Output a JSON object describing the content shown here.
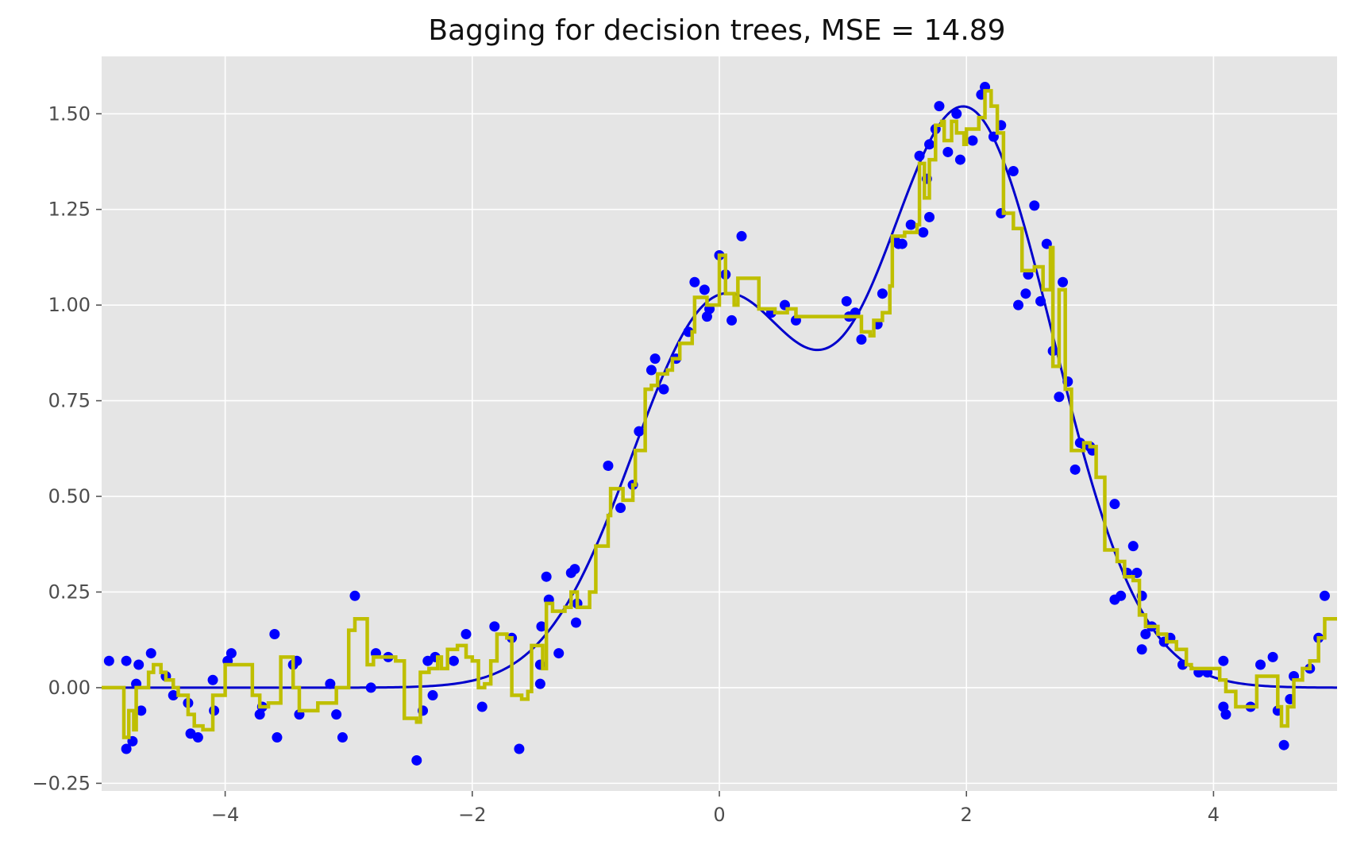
{
  "chart_data": {
    "type": "scatter",
    "title": "Bagging for decision trees, MSE = 14.89",
    "xlabel": "",
    "ylabel": "",
    "xlim": [
      -5,
      5
    ],
    "ylim": [
      -0.27,
      1.65
    ],
    "grid": true,
    "xticks": [
      -4,
      -2,
      0,
      2,
      4
    ],
    "xtick_labels": [
      "−4",
      "−2",
      "0",
      "2",
      "4"
    ],
    "yticks": [
      -0.25,
      0,
      0.25,
      0.5,
      0.75,
      1.0,
      1.25,
      1.5
    ],
    "ytick_labels": [
      "−0.25",
      "0.00",
      "0.25",
      "0.50",
      "0.75",
      "1.00",
      "1.25",
      "1.50"
    ],
    "colors": {
      "background": "#e5e5e5",
      "grid": "#ffffff",
      "points": "#0000ff",
      "true_function": "#0000cc",
      "prediction": "#bfbf00"
    },
    "true_function": {
      "note_free": true,
      "formula": "exp(-x^2) + 1.5*exp(-(x-2)^2)",
      "x_range": [
        -5,
        5
      ]
    },
    "points": [
      [
        -4.94,
        0.07
      ],
      [
        -4.8,
        0.07
      ],
      [
        -4.8,
        -0.16
      ],
      [
        -4.75,
        -0.14
      ],
      [
        -4.72,
        0.01
      ],
      [
        -4.7,
        0.06
      ],
      [
        -4.68,
        -0.06
      ],
      [
        -4.6,
        0.09
      ],
      [
        -4.48,
        0.03
      ],
      [
        -4.42,
        -0.02
      ],
      [
        -4.3,
        -0.04
      ],
      [
        -4.28,
        -0.12
      ],
      [
        -4.22,
        -0.13
      ],
      [
        -4.1,
        0.02
      ],
      [
        -4.09,
        -0.06
      ],
      [
        -3.98,
        0.07
      ],
      [
        -3.95,
        0.09
      ],
      [
        -3.72,
        -0.07
      ],
      [
        -3.7,
        -0.05
      ],
      [
        -3.6,
        0.14
      ],
      [
        -3.58,
        -0.13
      ],
      [
        -3.45,
        0.06
      ],
      [
        -3.4,
        -0.07
      ],
      [
        -3.42,
        0.07
      ],
      [
        -3.15,
        0.01
      ],
      [
        -3.1,
        -0.07
      ],
      [
        -3.05,
        -0.13
      ],
      [
        -2.95,
        0.24
      ],
      [
        -2.82,
        0.0
      ],
      [
        -2.78,
        0.09
      ],
      [
        -2.68,
        0.08
      ],
      [
        -2.45,
        -0.19
      ],
      [
        -2.4,
        -0.06
      ],
      [
        -2.36,
        0.07
      ],
      [
        -2.32,
        -0.02
      ],
      [
        -2.3,
        0.08
      ],
      [
        -2.15,
        0.07
      ],
      [
        -2.05,
        0.14
      ],
      [
        -1.92,
        -0.05
      ],
      [
        -1.82,
        0.16
      ],
      [
        -1.68,
        0.13
      ],
      [
        -1.62,
        -0.16
      ],
      [
        -1.45,
        0.01
      ],
      [
        -1.45,
        0.06
      ],
      [
        -1.44,
        0.16
      ],
      [
        -1.4,
        0.29
      ],
      [
        -1.38,
        0.23
      ],
      [
        -1.3,
        0.09
      ],
      [
        -1.2,
        0.3
      ],
      [
        -1.17,
        0.31
      ],
      [
        -1.16,
        0.17
      ],
      [
        -1.15,
        0.22
      ],
      [
        -0.9,
        0.58
      ],
      [
        -0.8,
        0.47
      ],
      [
        -0.7,
        0.53
      ],
      [
        -0.65,
        0.67
      ],
      [
        -0.55,
        0.83
      ],
      [
        -0.52,
        0.86
      ],
      [
        -0.45,
        0.78
      ],
      [
        -0.35,
        0.86
      ],
      [
        -0.25,
        0.93
      ],
      [
        -0.2,
        1.06
      ],
      [
        -0.12,
        1.04
      ],
      [
        -0.1,
        0.97
      ],
      [
        -0.08,
        0.99
      ],
      [
        0.0,
        1.13
      ],
      [
        0.05,
        1.08
      ],
      [
        0.1,
        0.96
      ],
      [
        0.18,
        1.18
      ],
      [
        0.42,
        0.98
      ],
      [
        0.53,
        1.0
      ],
      [
        0.62,
        0.96
      ],
      [
        1.03,
        1.01
      ],
      [
        1.05,
        0.97
      ],
      [
        1.1,
        0.98
      ],
      [
        1.15,
        0.91
      ],
      [
        1.28,
        0.95
      ],
      [
        1.32,
        1.03
      ],
      [
        1.42,
        1.17
      ],
      [
        1.45,
        1.16
      ],
      [
        1.48,
        1.16
      ],
      [
        1.55,
        1.21
      ],
      [
        1.62,
        1.39
      ],
      [
        1.65,
        1.19
      ],
      [
        1.68,
        1.33
      ],
      [
        1.7,
        1.42
      ],
      [
        1.7,
        1.23
      ],
      [
        1.75,
        1.46
      ],
      [
        1.78,
        1.52
      ],
      [
        1.85,
        1.4
      ],
      [
        1.92,
        1.5
      ],
      [
        1.95,
        1.38
      ],
      [
        2.05,
        1.43
      ],
      [
        2.12,
        1.55
      ],
      [
        2.15,
        1.57
      ],
      [
        2.22,
        1.44
      ],
      [
        2.28,
        1.47
      ],
      [
        2.28,
        1.24
      ],
      [
        2.38,
        1.35
      ],
      [
        2.42,
        1.0
      ],
      [
        2.48,
        1.03
      ],
      [
        2.5,
        1.08
      ],
      [
        2.55,
        1.26
      ],
      [
        2.6,
        1.01
      ],
      [
        2.65,
        1.16
      ],
      [
        2.7,
        0.88
      ],
      [
        2.75,
        0.76
      ],
      [
        2.78,
        1.06
      ],
      [
        2.82,
        0.8
      ],
      [
        2.88,
        0.57
      ],
      [
        2.92,
        0.64
      ],
      [
        3.0,
        0.63
      ],
      [
        3.02,
        0.62
      ],
      [
        3.2,
        0.48
      ],
      [
        3.2,
        0.23
      ],
      [
        3.25,
        0.24
      ],
      [
        3.3,
        0.3
      ],
      [
        3.35,
        0.37
      ],
      [
        3.38,
        0.3
      ],
      [
        3.42,
        0.24
      ],
      [
        3.42,
        0.1
      ],
      [
        3.45,
        0.14
      ],
      [
        3.5,
        0.16
      ],
      [
        3.6,
        0.12
      ],
      [
        3.65,
        0.13
      ],
      [
        3.75,
        0.06
      ],
      [
        3.88,
        0.04
      ],
      [
        3.95,
        0.04
      ],
      [
        4.08,
        -0.05
      ],
      [
        4.1,
        -0.07
      ],
      [
        4.08,
        0.07
      ],
      [
        4.3,
        -0.05
      ],
      [
        4.38,
        0.06
      ],
      [
        4.48,
        0.08
      ],
      [
        4.52,
        -0.06
      ],
      [
        4.57,
        -0.15
      ],
      [
        4.62,
        -0.03
      ],
      [
        4.65,
        0.03
      ],
      [
        4.78,
        0.05
      ],
      [
        4.85,
        0.13
      ],
      [
        4.9,
        0.24
      ]
    ],
    "prediction": [
      [
        -5.0,
        0.0
      ],
      [
        -4.9,
        0.0
      ],
      [
        -4.82,
        -0.13
      ],
      [
        -4.78,
        -0.06
      ],
      [
        -4.74,
        -0.11
      ],
      [
        -4.72,
        0.0
      ],
      [
        -4.68,
        0.0
      ],
      [
        -4.62,
        0.04
      ],
      [
        -4.58,
        0.06
      ],
      [
        -4.52,
        0.04
      ],
      [
        -4.48,
        0.02
      ],
      [
        -4.42,
        0.0
      ],
      [
        -4.38,
        -0.02
      ],
      [
        -4.3,
        -0.07
      ],
      [
        -4.25,
        -0.1
      ],
      [
        -4.18,
        -0.11
      ],
      [
        -4.12,
        -0.11
      ],
      [
        -4.1,
        -0.02
      ],
      [
        -4.05,
        -0.02
      ],
      [
        -4.0,
        0.06
      ],
      [
        -3.9,
        0.06
      ],
      [
        -3.82,
        0.06
      ],
      [
        -3.78,
        -0.02
      ],
      [
        -3.72,
        -0.05
      ],
      [
        -3.65,
        -0.04
      ],
      [
        -3.58,
        -0.04
      ],
      [
        -3.55,
        0.08
      ],
      [
        -3.48,
        0.08
      ],
      [
        -3.45,
        0.0
      ],
      [
        -3.4,
        -0.06
      ],
      [
        -3.3,
        -0.06
      ],
      [
        -3.25,
        -0.04
      ],
      [
        -3.15,
        -0.04
      ],
      [
        -3.1,
        0.0
      ],
      [
        -3.02,
        0.0
      ],
      [
        -3.0,
        0.15
      ],
      [
        -2.95,
        0.18
      ],
      [
        -2.88,
        0.18
      ],
      [
        -2.85,
        0.06
      ],
      [
        -2.8,
        0.08
      ],
      [
        -2.7,
        0.08
      ],
      [
        -2.62,
        0.07
      ],
      [
        -2.55,
        -0.08
      ],
      [
        -2.45,
        -0.09
      ],
      [
        -2.42,
        0.04
      ],
      [
        -2.35,
        0.05
      ],
      [
        -2.28,
        0.08
      ],
      [
        -2.25,
        0.05
      ],
      [
        -2.2,
        0.1
      ],
      [
        -2.12,
        0.11
      ],
      [
        -2.05,
        0.08
      ],
      [
        -2.0,
        0.07
      ],
      [
        -1.95,
        0.0
      ],
      [
        -1.9,
        0.01
      ],
      [
        -1.85,
        0.07
      ],
      [
        -1.8,
        0.14
      ],
      [
        -1.72,
        0.13
      ],
      [
        -1.68,
        -0.02
      ],
      [
        -1.6,
        -0.03
      ],
      [
        -1.55,
        -0.01
      ],
      [
        -1.52,
        0.11
      ],
      [
        -1.45,
        0.11
      ],
      [
        -1.43,
        0.05
      ],
      [
        -1.4,
        0.22
      ],
      [
        -1.35,
        0.2
      ],
      [
        -1.25,
        0.21
      ],
      [
        -1.2,
        0.25
      ],
      [
        -1.15,
        0.21
      ],
      [
        -1.05,
        0.25
      ],
      [
        -1.0,
        0.37
      ],
      [
        -0.9,
        0.45
      ],
      [
        -0.88,
        0.52
      ],
      [
        -0.8,
        0.52
      ],
      [
        -0.78,
        0.49
      ],
      [
        -0.7,
        0.53
      ],
      [
        -0.68,
        0.62
      ],
      [
        -0.62,
        0.62
      ],
      [
        -0.6,
        0.78
      ],
      [
        -0.55,
        0.79
      ],
      [
        -0.5,
        0.82
      ],
      [
        -0.42,
        0.83
      ],
      [
        -0.38,
        0.86
      ],
      [
        -0.32,
        0.9
      ],
      [
        -0.22,
        0.93
      ],
      [
        -0.2,
        1.02
      ],
      [
        -0.1,
        1.0
      ],
      [
        0.0,
        1.13
      ],
      [
        0.05,
        1.03
      ],
      [
        0.12,
        1.0
      ],
      [
        0.15,
        1.07
      ],
      [
        0.3,
        1.07
      ],
      [
        0.32,
        0.99
      ],
      [
        0.45,
        0.98
      ],
      [
        0.55,
        0.99
      ],
      [
        0.62,
        0.97
      ],
      [
        0.85,
        0.97
      ],
      [
        0.95,
        0.97
      ],
      [
        1.1,
        0.97
      ],
      [
        1.15,
        0.93
      ],
      [
        1.22,
        0.92
      ],
      [
        1.25,
        0.96
      ],
      [
        1.32,
        0.98
      ],
      [
        1.38,
        1.05
      ],
      [
        1.4,
        1.18
      ],
      [
        1.5,
        1.19
      ],
      [
        1.6,
        1.21
      ],
      [
        1.62,
        1.37
      ],
      [
        1.66,
        1.28
      ],
      [
        1.7,
        1.38
      ],
      [
        1.75,
        1.47
      ],
      [
        1.8,
        1.48
      ],
      [
        1.82,
        1.43
      ],
      [
        1.88,
        1.48
      ],
      [
        1.92,
        1.45
      ],
      [
        1.98,
        1.42
      ],
      [
        2.0,
        1.46
      ],
      [
        2.05,
        1.46
      ],
      [
        2.1,
        1.49
      ],
      [
        2.15,
        1.56
      ],
      [
        2.2,
        1.52
      ],
      [
        2.25,
        1.45
      ],
      [
        2.3,
        1.24
      ],
      [
        2.38,
        1.2
      ],
      [
        2.45,
        1.09
      ],
      [
        2.55,
        1.1
      ],
      [
        2.62,
        1.04
      ],
      [
        2.68,
        1.15
      ],
      [
        2.7,
        0.84
      ],
      [
        2.75,
        1.04
      ],
      [
        2.8,
        0.78
      ],
      [
        2.85,
        0.62
      ],
      [
        2.95,
        0.64
      ],
      [
        3.0,
        0.63
      ],
      [
        3.05,
        0.55
      ],
      [
        3.12,
        0.36
      ],
      [
        3.18,
        0.36
      ],
      [
        3.22,
        0.33
      ],
      [
        3.28,
        0.29
      ],
      [
        3.35,
        0.28
      ],
      [
        3.4,
        0.19
      ],
      [
        3.45,
        0.16
      ],
      [
        3.55,
        0.14
      ],
      [
        3.62,
        0.12
      ],
      [
        3.7,
        0.1
      ],
      [
        3.78,
        0.06
      ],
      [
        3.82,
        0.05
      ],
      [
        3.95,
        0.05
      ],
      [
        4.05,
        0.02
      ],
      [
        4.1,
        -0.01
      ],
      [
        4.18,
        -0.05
      ],
      [
        4.28,
        -0.05
      ],
      [
        4.35,
        0.03
      ],
      [
        4.45,
        0.03
      ],
      [
        4.52,
        -0.05
      ],
      [
        4.55,
        -0.1
      ],
      [
        4.6,
        -0.05
      ],
      [
        4.65,
        0.02
      ],
      [
        4.72,
        0.05
      ],
      [
        4.78,
        0.07
      ],
      [
        4.85,
        0.13
      ],
      [
        4.9,
        0.18
      ],
      [
        5.0,
        0.18
      ]
    ]
  }
}
